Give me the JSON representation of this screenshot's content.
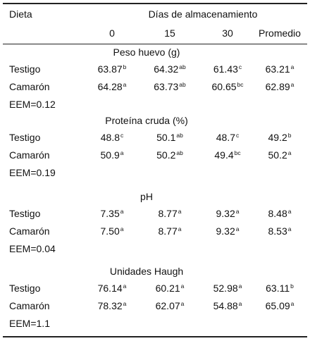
{
  "header": {
    "col_dieta": "Dieta",
    "group_title": "Días de almacenamiento",
    "columns": [
      "0",
      "15",
      "30",
      "Promedio"
    ]
  },
  "sections": [
    {
      "title": "Peso huevo (g)",
      "rows": [
        {
          "label": "Testigo",
          "cells": [
            {
              "v": "63.87",
              "s": "b"
            },
            {
              "v": "64.32",
              "s": "ab"
            },
            {
              "v": "61.43",
              "s": "c"
            },
            {
              "v": "63.21",
              "s": "a"
            }
          ]
        },
        {
          "label": "Camarón",
          "cells": [
            {
              "v": "64.28",
              "s": "a"
            },
            {
              "v": "63.73",
              "s": "ab"
            },
            {
              "v": "60.65",
              "s": "bc"
            },
            {
              "v": "62.89",
              "s": "a"
            }
          ]
        }
      ],
      "eem": "EEM=0.12"
    },
    {
      "title": "Proteína cruda (%)",
      "rows": [
        {
          "label": "Testigo",
          "cells": [
            {
              "v": "48.8",
              "s": "c"
            },
            {
              "v": "50.1",
              "s": "ab"
            },
            {
              "v": "48.7",
              "s": "c"
            },
            {
              "v": "49.2",
              "s": "b"
            }
          ]
        },
        {
          "label": "Camarón",
          "cells": [
            {
              "v": "50.9",
              "s": "a"
            },
            {
              "v": "50.2",
              "s": "ab"
            },
            {
              "v": "49.4",
              "s": "bc"
            },
            {
              "v": "50.2",
              "s": "a"
            }
          ]
        }
      ],
      "eem": "EEM=0.19"
    },
    {
      "title": "pH",
      "rows": [
        {
          "label": "Testigo",
          "cells": [
            {
              "v": "7.35",
              "s": "a"
            },
            {
              "v": "8.77",
              "s": "a"
            },
            {
              "v": "9.32",
              "s": "a"
            },
            {
              "v": "8.48",
              "s": "a"
            }
          ]
        },
        {
          "label": "Camarón",
          "cells": [
            {
              "v": "7.50",
              "s": "a"
            },
            {
              "v": "8.77",
              "s": "a"
            },
            {
              "v": "9.32",
              "s": "a"
            },
            {
              "v": "8.53",
              "s": "a"
            }
          ]
        }
      ],
      "eem": "EEM=0.04"
    },
    {
      "title": "Unidades Haugh",
      "rows": [
        {
          "label": "Testigo",
          "cells": [
            {
              "v": "76.14",
              "s": "a"
            },
            {
              "v": "60.21",
              "s": "a"
            },
            {
              "v": "52.98",
              "s": "a"
            },
            {
              "v": "63.11",
              "s": "b"
            }
          ]
        },
        {
          "label": "Camarón",
          "cells": [
            {
              "v": "78.32",
              "s": "a"
            },
            {
              "v": "62.07",
              "s": "a"
            },
            {
              "v": "54.88",
              "s": "a"
            },
            {
              "v": "65.09",
              "s": "a"
            }
          ]
        }
      ],
      "eem": "EEM=1.1"
    }
  ]
}
